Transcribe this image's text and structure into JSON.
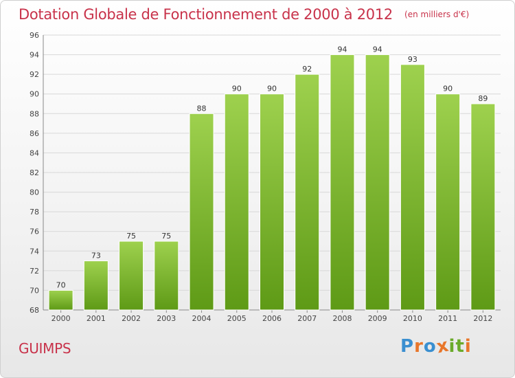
{
  "chart_data": {
    "type": "bar",
    "title": "Dotation Globale de Fonctionnement de 2000 à 2012",
    "subtitle": "(en milliers d'€)",
    "categories": [
      "2000",
      "2001",
      "2002",
      "2003",
      "2004",
      "2005",
      "2006",
      "2007",
      "2008",
      "2009",
      "2010",
      "2011",
      "2012"
    ],
    "values": [
      70,
      73,
      75,
      75,
      88,
      90,
      90,
      92,
      94,
      94,
      93,
      90,
      89
    ],
    "value_labels": [
      "70",
      "73",
      "75",
      "75",
      "88",
      "90",
      "90",
      "92",
      "94",
      "94",
      "93",
      "90",
      "89"
    ],
    "y_ticks": [
      "68",
      "70",
      "72",
      "74",
      "76",
      "78",
      "80",
      "82",
      "84",
      "86",
      "88",
      "90",
      "92",
      "94",
      "96"
    ],
    "ylim": [
      68,
      96
    ],
    "xlabel": "",
    "ylabel": "",
    "grid": true,
    "colors": {
      "bar_top": "#9ed14e",
      "bar_bottom": "#5e9a16",
      "grid": "#d8d8d8",
      "title": "#c8324a"
    }
  },
  "footer": {
    "commune": "GUIMPS",
    "logo_letters": [
      "P",
      "r",
      "o",
      "x",
      "i",
      "t",
      "i"
    ],
    "logo_colors": [
      "#3a8fd0",
      "#e8762a",
      "#3a8fd0",
      "#e8762a",
      "#6aaa2a",
      "#6aaa2a",
      "#e8762a"
    ]
  }
}
